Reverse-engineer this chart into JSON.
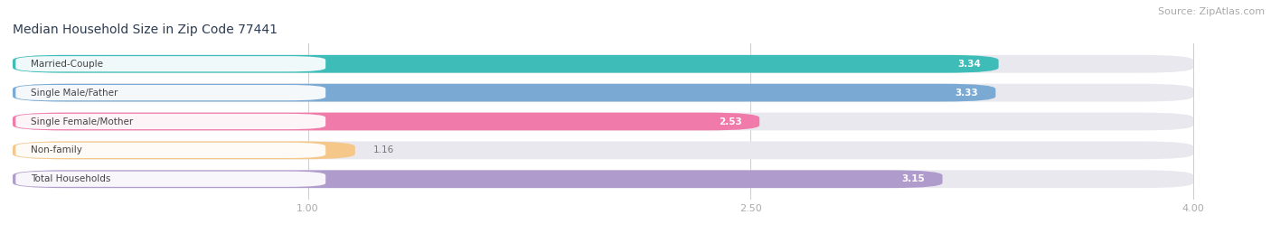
{
  "title": "Median Household Size in Zip Code 77441",
  "source": "Source: ZipAtlas.com",
  "categories": [
    "Married-Couple",
    "Single Male/Father",
    "Single Female/Mother",
    "Non-family",
    "Total Households"
  ],
  "values": [
    3.34,
    3.33,
    2.53,
    1.16,
    3.15
  ],
  "bar_colors": [
    "#3dbcb8",
    "#7aaad4",
    "#f07aaa",
    "#f5c88a",
    "#b09ccc"
  ],
  "background_color": "#ffffff",
  "bar_bg_color": "#e8e8ee",
  "xlim": [
    0.0,
    4.2
  ],
  "xmin": 0.0,
  "xmax": 4.0,
  "xticks": [
    1.0,
    2.5,
    4.0
  ],
  "title_fontsize": 10,
  "source_fontsize": 8,
  "label_fontsize": 7.5,
  "value_fontsize": 7.5,
  "value_threshold": 1.8
}
